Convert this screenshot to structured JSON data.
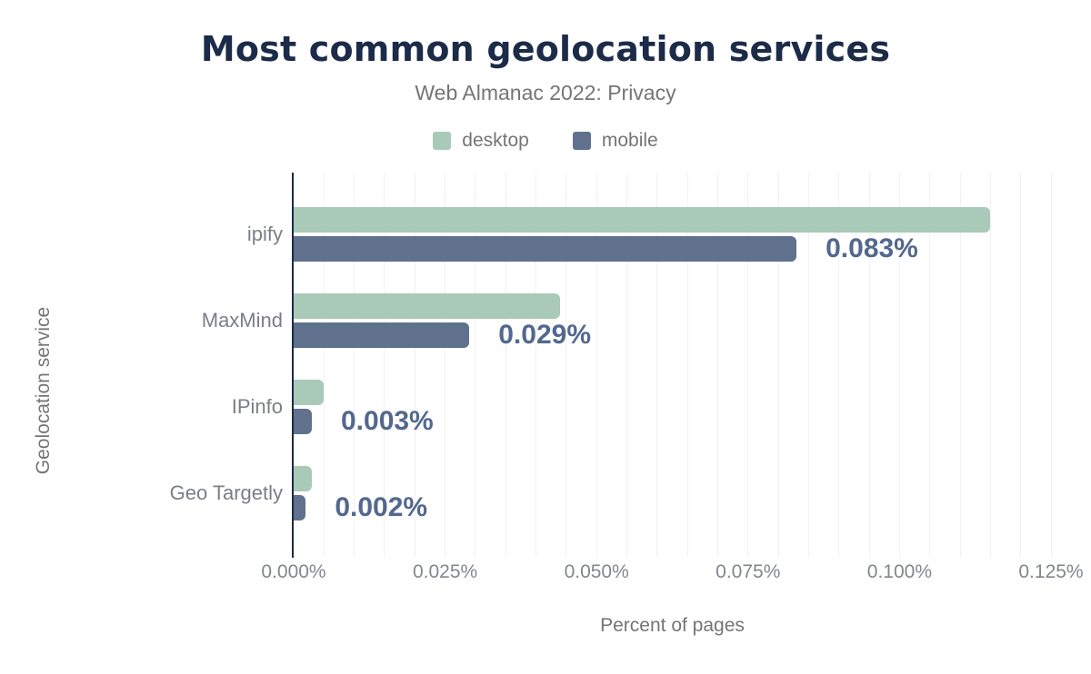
{
  "header": {
    "title": "Most common geolocation services",
    "subtitle": "Web Almanac 2022: Privacy"
  },
  "legend": [
    {
      "label": "desktop",
      "color": "#a9cab9"
    },
    {
      "label": "mobile",
      "color": "#5f718c"
    }
  ],
  "axes": {
    "x_title": "Percent of pages",
    "y_title": "Geolocation service",
    "x_ticks": [
      "0.000%",
      "0.025%",
      "0.050%",
      "0.075%",
      "0.100%",
      "0.125%"
    ]
  },
  "chart_data": {
    "type": "bar",
    "orientation": "horizontal",
    "title": "Most common geolocation services",
    "subtitle": "Web Almanac 2022: Privacy",
    "xlabel": "Percent of pages",
    "ylabel": "Geolocation service",
    "categories": [
      "ipify",
      "MaxMind",
      "IPinfo",
      "Geo Targetly"
    ],
    "series": [
      {
        "name": "desktop",
        "color": "#a9cab9",
        "values": [
          0.115,
          0.044,
          0.005,
          0.003
        ]
      },
      {
        "name": "mobile",
        "color": "#5f718c",
        "values": [
          0.083,
          0.029,
          0.003,
          0.002
        ]
      }
    ],
    "data_labels": [
      "0.083%",
      "0.029%",
      "0.003%",
      "0.002%"
    ],
    "xlim": [
      0,
      0.125
    ],
    "x_tick_step": 0.025,
    "gridline_step": 0.005,
    "grid": true,
    "legend_position": "top"
  },
  "colors": {
    "background": "#ffffff",
    "title": "#1b2b48",
    "subtitle": "#757575",
    "legend_label": "#757575",
    "axis_line": "#1b2b45",
    "grid_line": "#f1f1f3",
    "tick_label": "#82878d",
    "category_label": "#7b7f85",
    "axis_title": "#757575",
    "data_label": "#52688e",
    "desktop_bar": "#a9cab9",
    "mobile_bar": "#5f718c"
  }
}
